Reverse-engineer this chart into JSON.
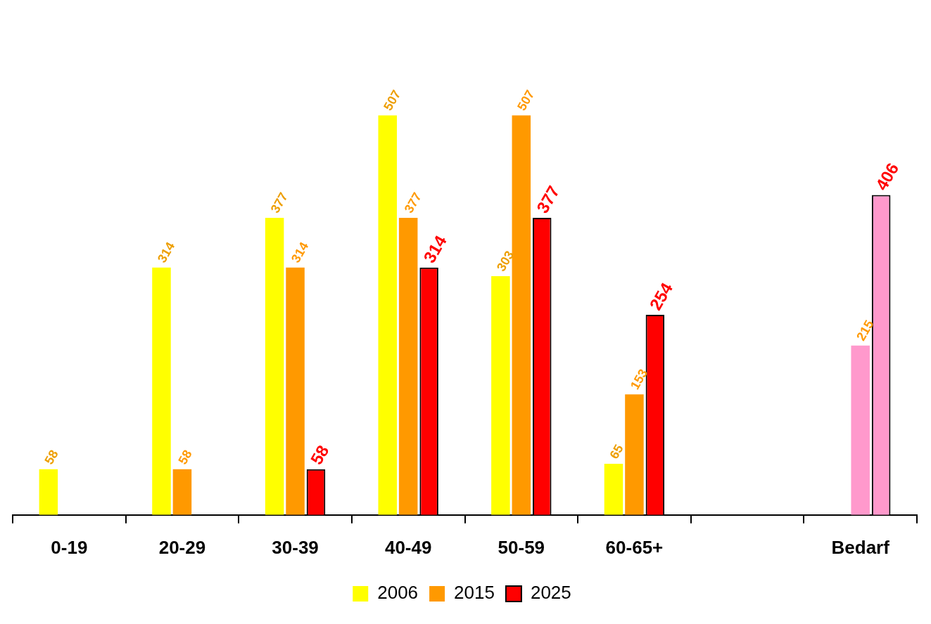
{
  "chart_data": {
    "type": "bar",
    "categories": [
      "0-19",
      "20-29",
      "30-39",
      "40-49",
      "50-59",
      "60-65+",
      null,
      "Bedarf"
    ],
    "series": [
      {
        "name": "2006",
        "color": "#ffff00",
        "values": [
          58,
          314,
          377,
          507,
          303,
          65,
          null,
          null
        ]
      },
      {
        "name": "2015",
        "color": "#ff9900",
        "colors": [
          "#ff9900",
          "#ff9900",
          "#ff9900",
          "#ff9900",
          "#ff9900",
          "#ff9900",
          "#ff9900",
          "#ff99cc"
        ],
        "values": [
          null,
          58,
          314,
          377,
          507,
          153,
          null,
          215
        ]
      },
      {
        "name": "2025",
        "color": "#ff0000",
        "colors": [
          "#ff0000",
          "#ff0000",
          "#ff0000",
          "#ff0000",
          "#ff0000",
          "#ff0000",
          "#ff0000",
          "#ff99cc"
        ],
        "values": [
          null,
          null,
          58,
          314,
          377,
          254,
          null,
          406
        ]
      }
    ],
    "relative": false,
    "data_labels": true,
    "legend": "bottom",
    "grid": false
  }
}
